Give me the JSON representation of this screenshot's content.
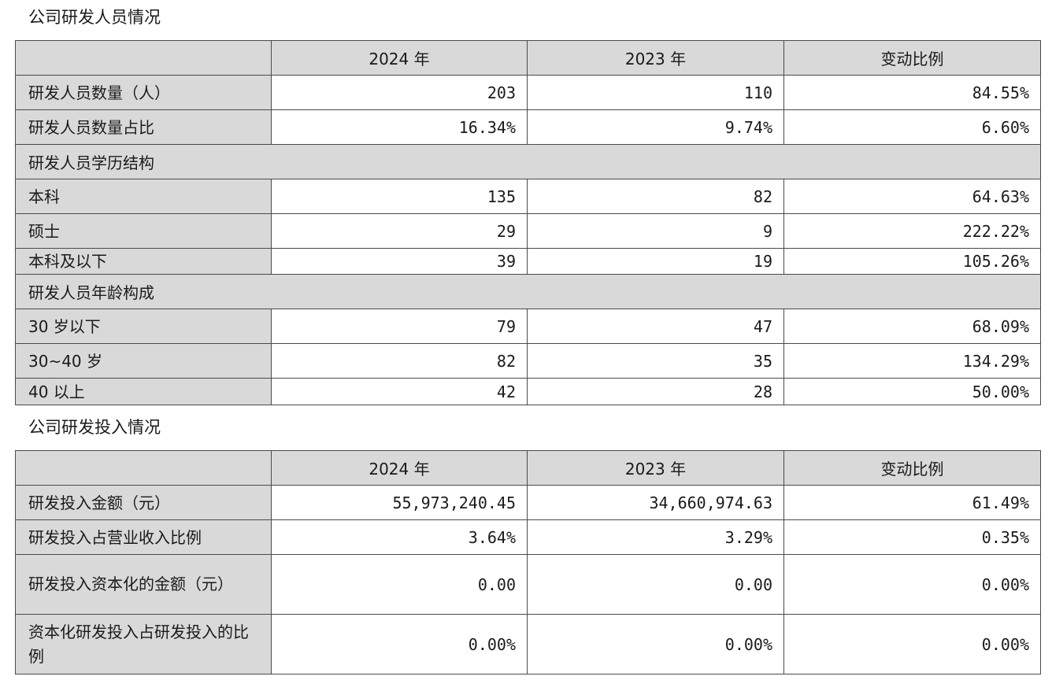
{
  "staff_section": {
    "title": "公司研发人员情况",
    "headers": [
      "",
      "2024 年",
      "2023 年",
      "变动比例"
    ],
    "rows": [
      {
        "type": "data",
        "label": "研发人员数量（人）",
        "v2024": "203",
        "v2023": "110",
        "change": "84.55%"
      },
      {
        "type": "data",
        "label": "研发人员数量占比",
        "v2024": "16.34%",
        "v2023": "9.74%",
        "change": "6.60%"
      },
      {
        "type": "group",
        "label": "研发人员学历结构"
      },
      {
        "type": "data",
        "label": "本科",
        "v2024": "135",
        "v2023": "82",
        "change": "64.63%"
      },
      {
        "type": "data",
        "label": "硕士",
        "v2024": "29",
        "v2023": "9",
        "change": "222.22%"
      },
      {
        "type": "data",
        "label": "本科及以下",
        "v2024": "39",
        "v2023": "19",
        "change": "105.26%"
      },
      {
        "type": "group",
        "label": "研发人员年龄构成"
      },
      {
        "type": "data",
        "label": "30 岁以下",
        "v2024": "79",
        "v2023": "47",
        "change": "68.09%"
      },
      {
        "type": "data",
        "label": "30~40 岁",
        "v2024": "82",
        "v2023": "35",
        "change": "134.29%"
      },
      {
        "type": "data",
        "label": "40 以上",
        "v2024": "42",
        "v2023": "28",
        "change": "50.00%"
      }
    ]
  },
  "investment_section": {
    "title": "公司研发投入情况",
    "headers": [
      "",
      "2024 年",
      "2023 年",
      "变动比例"
    ],
    "rows": [
      {
        "type": "data",
        "label": "研发投入金额（元）",
        "v2024": "55,973,240.45",
        "v2023": "34,660,974.63",
        "change": "61.49%"
      },
      {
        "type": "data",
        "label": "研发投入占营业收入比例",
        "v2024": "3.64%",
        "v2023": "3.29%",
        "change": "0.35%"
      },
      {
        "type": "data",
        "label": "研发投入资本化的金额（元）",
        "v2024": "0.00",
        "v2023": "0.00",
        "change": "0.00%"
      },
      {
        "type": "data",
        "label": "资本化研发投入占研发投入的比例",
        "v2024": "0.00%",
        "v2023": "0.00%",
        "change": "0.00%"
      }
    ]
  }
}
